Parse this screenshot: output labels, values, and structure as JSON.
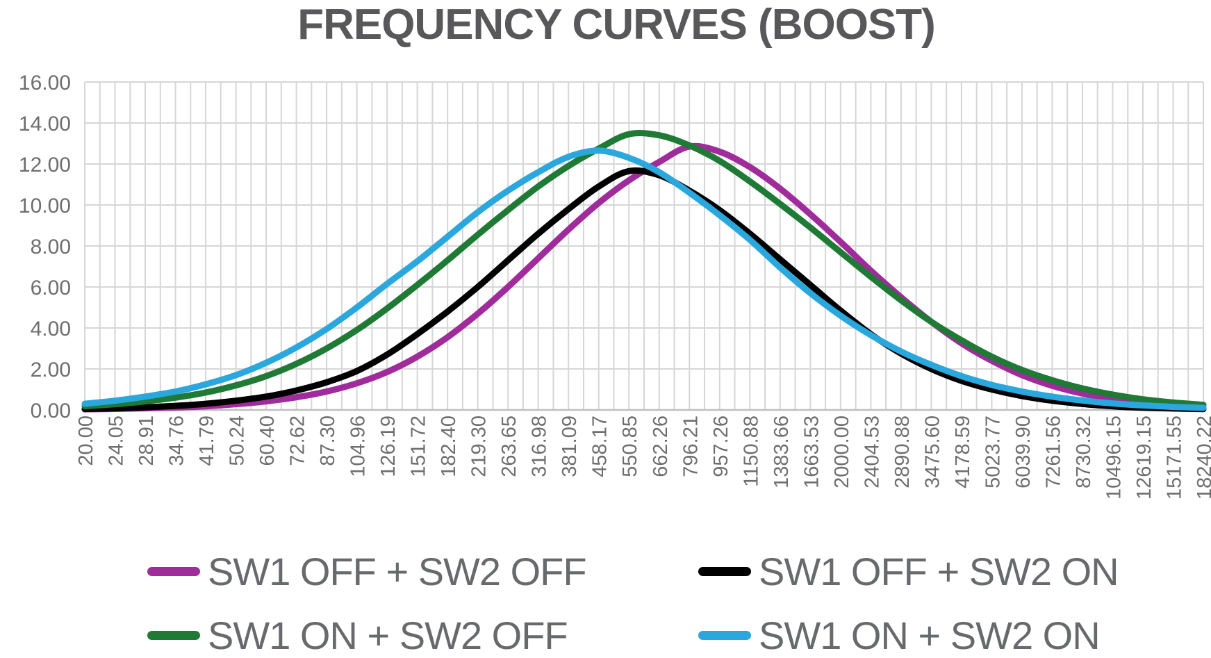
{
  "title": "FREQUENCY CURVES (BOOST)",
  "colors": {
    "title_text": "#58585A",
    "tick_text": "#6E6E6E",
    "legend_text": "#67696C",
    "gridline": "#D6D6D6",
    "axis_line": "#BFBFBF",
    "background": "#FFFFFF"
  },
  "chart_data": {
    "type": "line",
    "title": "FREQUENCY CURVES (BOOST)",
    "xlabel": "",
    "ylabel": "",
    "x_scale": "logarithmic-categories (Hz)",
    "grid": true,
    "legend_position": "bottom",
    "ylim": [
      0,
      16
    ],
    "ytick_step": 2,
    "y_ticks": [
      "0.00",
      "2.00",
      "4.00",
      "6.00",
      "8.00",
      "10.00",
      "12.00",
      "14.00",
      "16.00"
    ],
    "categories": [
      "20.00",
      "24.05",
      "28.91",
      "34.76",
      "41.79",
      "50.24",
      "60.40",
      "72.62",
      "87.30",
      "104.96",
      "126.19",
      "151.72",
      "182.40",
      "219.30",
      "263.65",
      "316.98",
      "381.09",
      "458.17",
      "550.85",
      "662.26",
      "796.21",
      "957.26",
      "1150.88",
      "1383.66",
      "1663.53",
      "2000.00",
      "2404.53",
      "2890.88",
      "3475.60",
      "4178.59",
      "5023.77",
      "6039.90",
      "7261.56",
      "8730.32",
      "10496.15",
      "12619.15",
      "15171.55",
      "18240.22"
    ],
    "series": [
      {
        "name": "SW1 OFF + SW2 OFF",
        "color": "#A02B9B",
        "values": [
          0.03,
          0.05,
          0.08,
          0.12,
          0.18,
          0.28,
          0.42,
          0.62,
          0.9,
          1.3,
          1.85,
          2.6,
          3.55,
          4.7,
          6.0,
          7.4,
          8.8,
          10.1,
          11.2,
          12.1,
          12.85,
          12.6,
          11.85,
          10.8,
          9.55,
          8.2,
          6.8,
          5.5,
          4.3,
          3.25,
          2.4,
          1.7,
          1.18,
          0.8,
          0.52,
          0.33,
          0.2,
          0.12
        ]
      },
      {
        "name": "SW1 OFF + SW2 ON",
        "color": "#000000",
        "values": [
          0.05,
          0.08,
          0.13,
          0.2,
          0.3,
          0.45,
          0.65,
          0.95,
          1.35,
          1.9,
          2.7,
          3.7,
          4.8,
          6.0,
          7.3,
          8.6,
          9.8,
          10.9,
          11.65,
          11.45,
          10.7,
          9.75,
          8.6,
          7.35,
          6.1,
          4.85,
          3.7,
          2.75,
          2.0,
          1.42,
          1.0,
          0.68,
          0.45,
          0.29,
          0.18,
          0.11,
          0.07,
          0.04
        ]
      },
      {
        "name": "SW1 ON + SW2 OFF",
        "color": "#1E7A34",
        "values": [
          0.18,
          0.28,
          0.42,
          0.6,
          0.85,
          1.2,
          1.65,
          2.25,
          3.0,
          3.9,
          4.95,
          6.1,
          7.3,
          8.55,
          9.75,
          10.9,
          11.9,
          12.75,
          13.45,
          13.4,
          12.9,
          12.15,
          11.15,
          10.05,
          8.9,
          7.7,
          6.5,
          5.35,
          4.3,
          3.4,
          2.6,
          1.95,
          1.45,
          1.05,
          0.75,
          0.52,
          0.36,
          0.25
        ]
      },
      {
        "name": "SW1 ON + SW2 ON",
        "color": "#2AA7DC",
        "values": [
          0.3,
          0.45,
          0.65,
          0.9,
          1.25,
          1.7,
          2.3,
          3.05,
          3.95,
          5.0,
          6.15,
          7.25,
          8.45,
          9.65,
          10.7,
          11.6,
          12.35,
          12.65,
          12.3,
          11.6,
          10.6,
          9.5,
          8.3,
          6.95,
          5.7,
          4.6,
          3.65,
          2.85,
          2.2,
          1.65,
          1.22,
          0.9,
          0.65,
          0.46,
          0.32,
          0.22,
          0.15,
          0.1
        ]
      }
    ]
  }
}
